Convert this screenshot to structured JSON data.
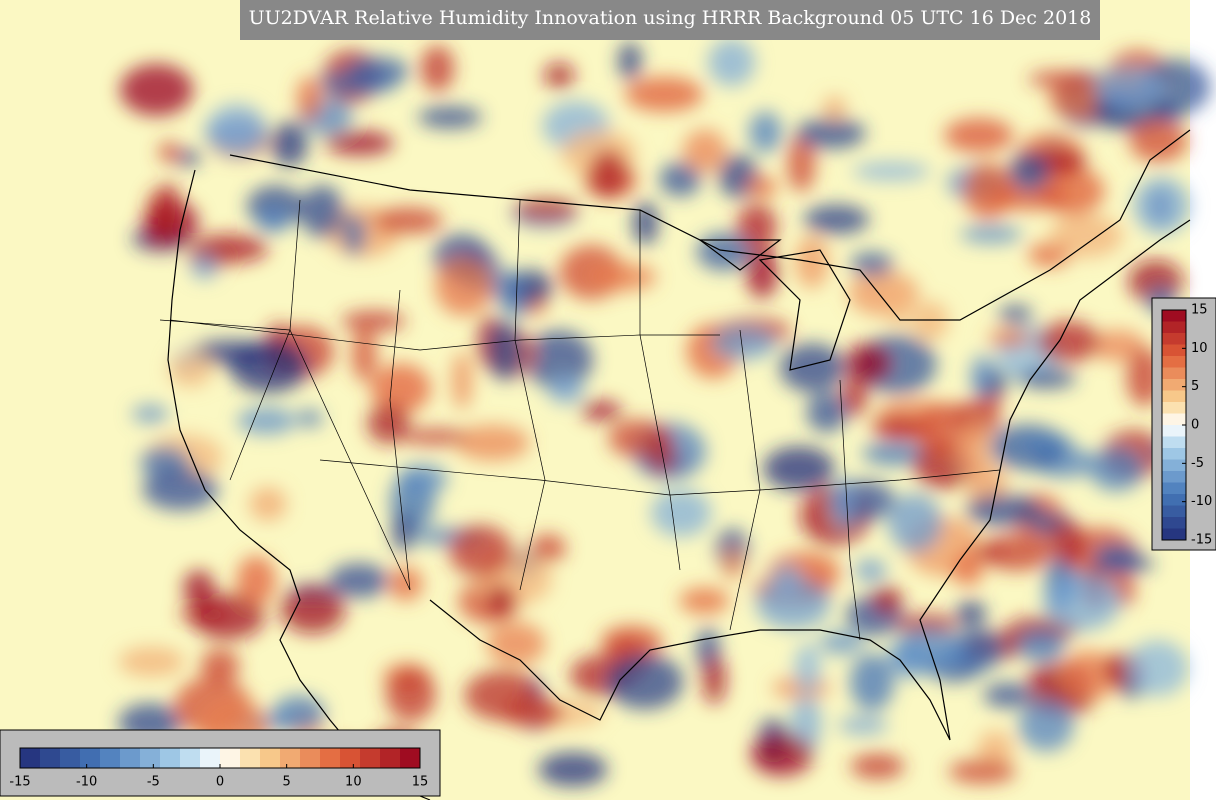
{
  "title": "UU2DVAR Relative Humidity Innovation using HRRR Background 05 UTC 16 Dec 2018",
  "colorbar_right": {
    "ticks": [
      15,
      10,
      5,
      0,
      -5,
      -10,
      -15
    ]
  },
  "colorbar_bottom": {
    "ticks": [
      -15,
      -10,
      -5,
      0,
      5,
      10,
      15
    ]
  }
}
